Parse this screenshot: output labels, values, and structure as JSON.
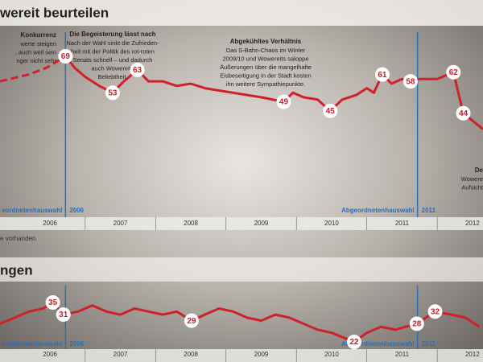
{
  "header": {
    "title": "wereit beurteilen",
    "note": "e vorhanden",
    "title2": "ngen"
  },
  "annotations": [
    {
      "title": "Konkurrenz",
      "lines": [
        "werte steigen",
        ", auch weil sein",
        "nger nicht sehr"
      ]
    },
    {
      "title": "Die Begeisterung lässt nach",
      "lines": [
        "Nach der Wahl sinkt die Zufrieden-",
        "heit mit der Politik des rot-roten",
        "Senats schnell – und dadurch",
        "auch Wowereits",
        "Beliebtheit."
      ]
    },
    {
      "title": "Abgekühltes Verhältnis",
      "lines": [
        "Das S-Bahn-Chaos im Winter",
        "2009/10 und Wowereits saloppe",
        "Äußerungen über die mangelhafte",
        "Eisbeseitigung in der Stadt kosten",
        "ihn weitere Sympathiepunkte."
      ]
    },
    {
      "title": "De",
      "lines": [
        "Wowere",
        "Aufsicht"
      ]
    }
  ],
  "chart_data": [
    {
      "type": "line",
      "xlim": [
        2005.79,
        2012.65
      ],
      "xticks": [
        2007,
        2008,
        2009,
        2010,
        2011,
        2012
      ],
      "year_labels": [
        {
          "value": 2006.5,
          "label": "2006"
        },
        {
          "value": 2007.5,
          "label": "2007"
        },
        {
          "value": 2008.5,
          "label": "2008"
        },
        {
          "value": 2009.5,
          "label": "2009"
        },
        {
          "value": 2010.5,
          "label": "2010"
        },
        {
          "value": 2011.5,
          "label": "2011"
        },
        {
          "value": 2012.5,
          "label": "2012"
        }
      ],
      "events": [
        {
          "x": 2006.72,
          "label": "eordnetenhauswahl",
          "year": "2006"
        },
        {
          "x": 2011.72,
          "label": "Abgeordnetenhauswahl",
          "year": "2011"
        }
      ],
      "series": [
        {
          "color": "#d0202a",
          "dashed": true,
          "x": [
            2005.79,
            2006.2,
            2006.45,
            2006.72
          ],
          "values": [
            58,
            61,
            64,
            69
          ],
          "labeled": []
        },
        {
          "color": "#d0202a",
          "dashed": false,
          "x": [
            2006.72,
            2006.85,
            2007.0,
            2007.2,
            2007.39,
            2007.55,
            2007.74,
            2007.9,
            2008.1,
            2008.3,
            2008.5,
            2008.7,
            2008.9,
            2009.1,
            2009.3,
            2009.5,
            2009.82,
            2009.95,
            2010.1,
            2010.3,
            2010.48,
            2010.65,
            2010.85,
            2011.0,
            2011.1,
            2011.22,
            2011.35,
            2011.5,
            2011.62,
            2011.75,
            2012.0,
            2012.23,
            2012.37,
            2012.65
          ],
          "values": [
            69,
            64,
            60,
            56,
            53,
            58,
            63,
            58,
            58,
            56,
            57,
            55,
            54,
            53,
            52,
            51,
            49,
            53,
            51,
            50,
            45,
            50,
            52,
            55,
            53,
            61,
            57,
            59,
            58,
            59,
            59,
            62,
            44,
            37
          ],
          "labeled": [
            0,
            4,
            6,
            16,
            20,
            25,
            28,
            31,
            32
          ]
        }
      ]
    },
    {
      "type": "line",
      "xlim": [
        2005.79,
        2012.65
      ],
      "xticks": [
        2007,
        2008,
        2009,
        2010,
        2011,
        2012
      ],
      "year_labels": [
        {
          "value": 2006.5,
          "label": "2006"
        },
        {
          "value": 2007.5,
          "label": "2007"
        },
        {
          "value": 2008.5,
          "label": "2008"
        },
        {
          "value": 2009.5,
          "label": "2009"
        },
        {
          "value": 2010.5,
          "label": "2010"
        },
        {
          "value": 2011.5,
          "label": "2011"
        },
        {
          "value": 2012.5,
          "label": "2012"
        }
      ],
      "events": [
        {
          "x": 2006.72,
          "label": "eordnetenhauswahl",
          "year": "2006"
        },
        {
          "x": 2011.72,
          "label": "Abgeordnetenhauswahl",
          "year": "2011"
        }
      ],
      "series": [
        {
          "color": "#d0202a",
          "dashed": false,
          "x": [
            2005.79,
            2006.0,
            2006.2,
            2006.4,
            2006.54,
            2006.69,
            2006.9,
            2007.1,
            2007.3,
            2007.5,
            2007.7,
            2007.9,
            2008.1,
            2008.3,
            2008.51,
            2008.7,
            2008.9,
            2009.1,
            2009.3,
            2009.5,
            2009.7,
            2009.9,
            2010.1,
            2010.3,
            2010.5,
            2010.82,
            2011.0,
            2011.2,
            2011.4,
            2011.71,
            2011.97,
            2012.2,
            2012.4,
            2012.6
          ],
          "values": [
            28,
            30,
            32,
            33,
            35,
            31,
            32,
            34,
            32,
            31,
            33,
            32,
            31,
            32,
            29,
            31,
            33,
            32,
            30,
            29,
            31,
            30,
            28,
            26,
            25,
            22,
            25,
            27,
            26,
            28,
            32,
            31,
            30,
            27
          ],
          "labeled": [
            4,
            5,
            14,
            25,
            29,
            30
          ]
        }
      ]
    }
  ]
}
